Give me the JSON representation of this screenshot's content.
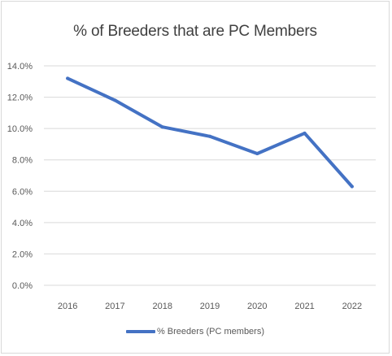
{
  "chart_data": {
    "type": "line",
    "title": "% of Breeders that are PC Members",
    "xlabel": "",
    "ylabel": "",
    "categories": [
      "2016",
      "2017",
      "2018",
      "2019",
      "2020",
      "2021",
      "2022"
    ],
    "series": [
      {
        "name": "% Breeders (PC members)",
        "values": [
          13.2,
          11.8,
          10.1,
          9.5,
          8.4,
          9.7,
          6.3
        ],
        "color": "#4472c4"
      }
    ],
    "ylim": [
      0,
      14
    ],
    "yticks": [
      "0.0%",
      "2.0%",
      "4.0%",
      "6.0%",
      "8.0%",
      "10.0%",
      "12.0%",
      "14.0%"
    ],
    "ytick_values": [
      0,
      2,
      4,
      6,
      8,
      10,
      12,
      14
    ],
    "grid": true,
    "legend_position": "bottom",
    "colors": {
      "line": "#4472c4",
      "grid": "#d9d9d9",
      "text": "#595959",
      "title": "#404040"
    }
  }
}
